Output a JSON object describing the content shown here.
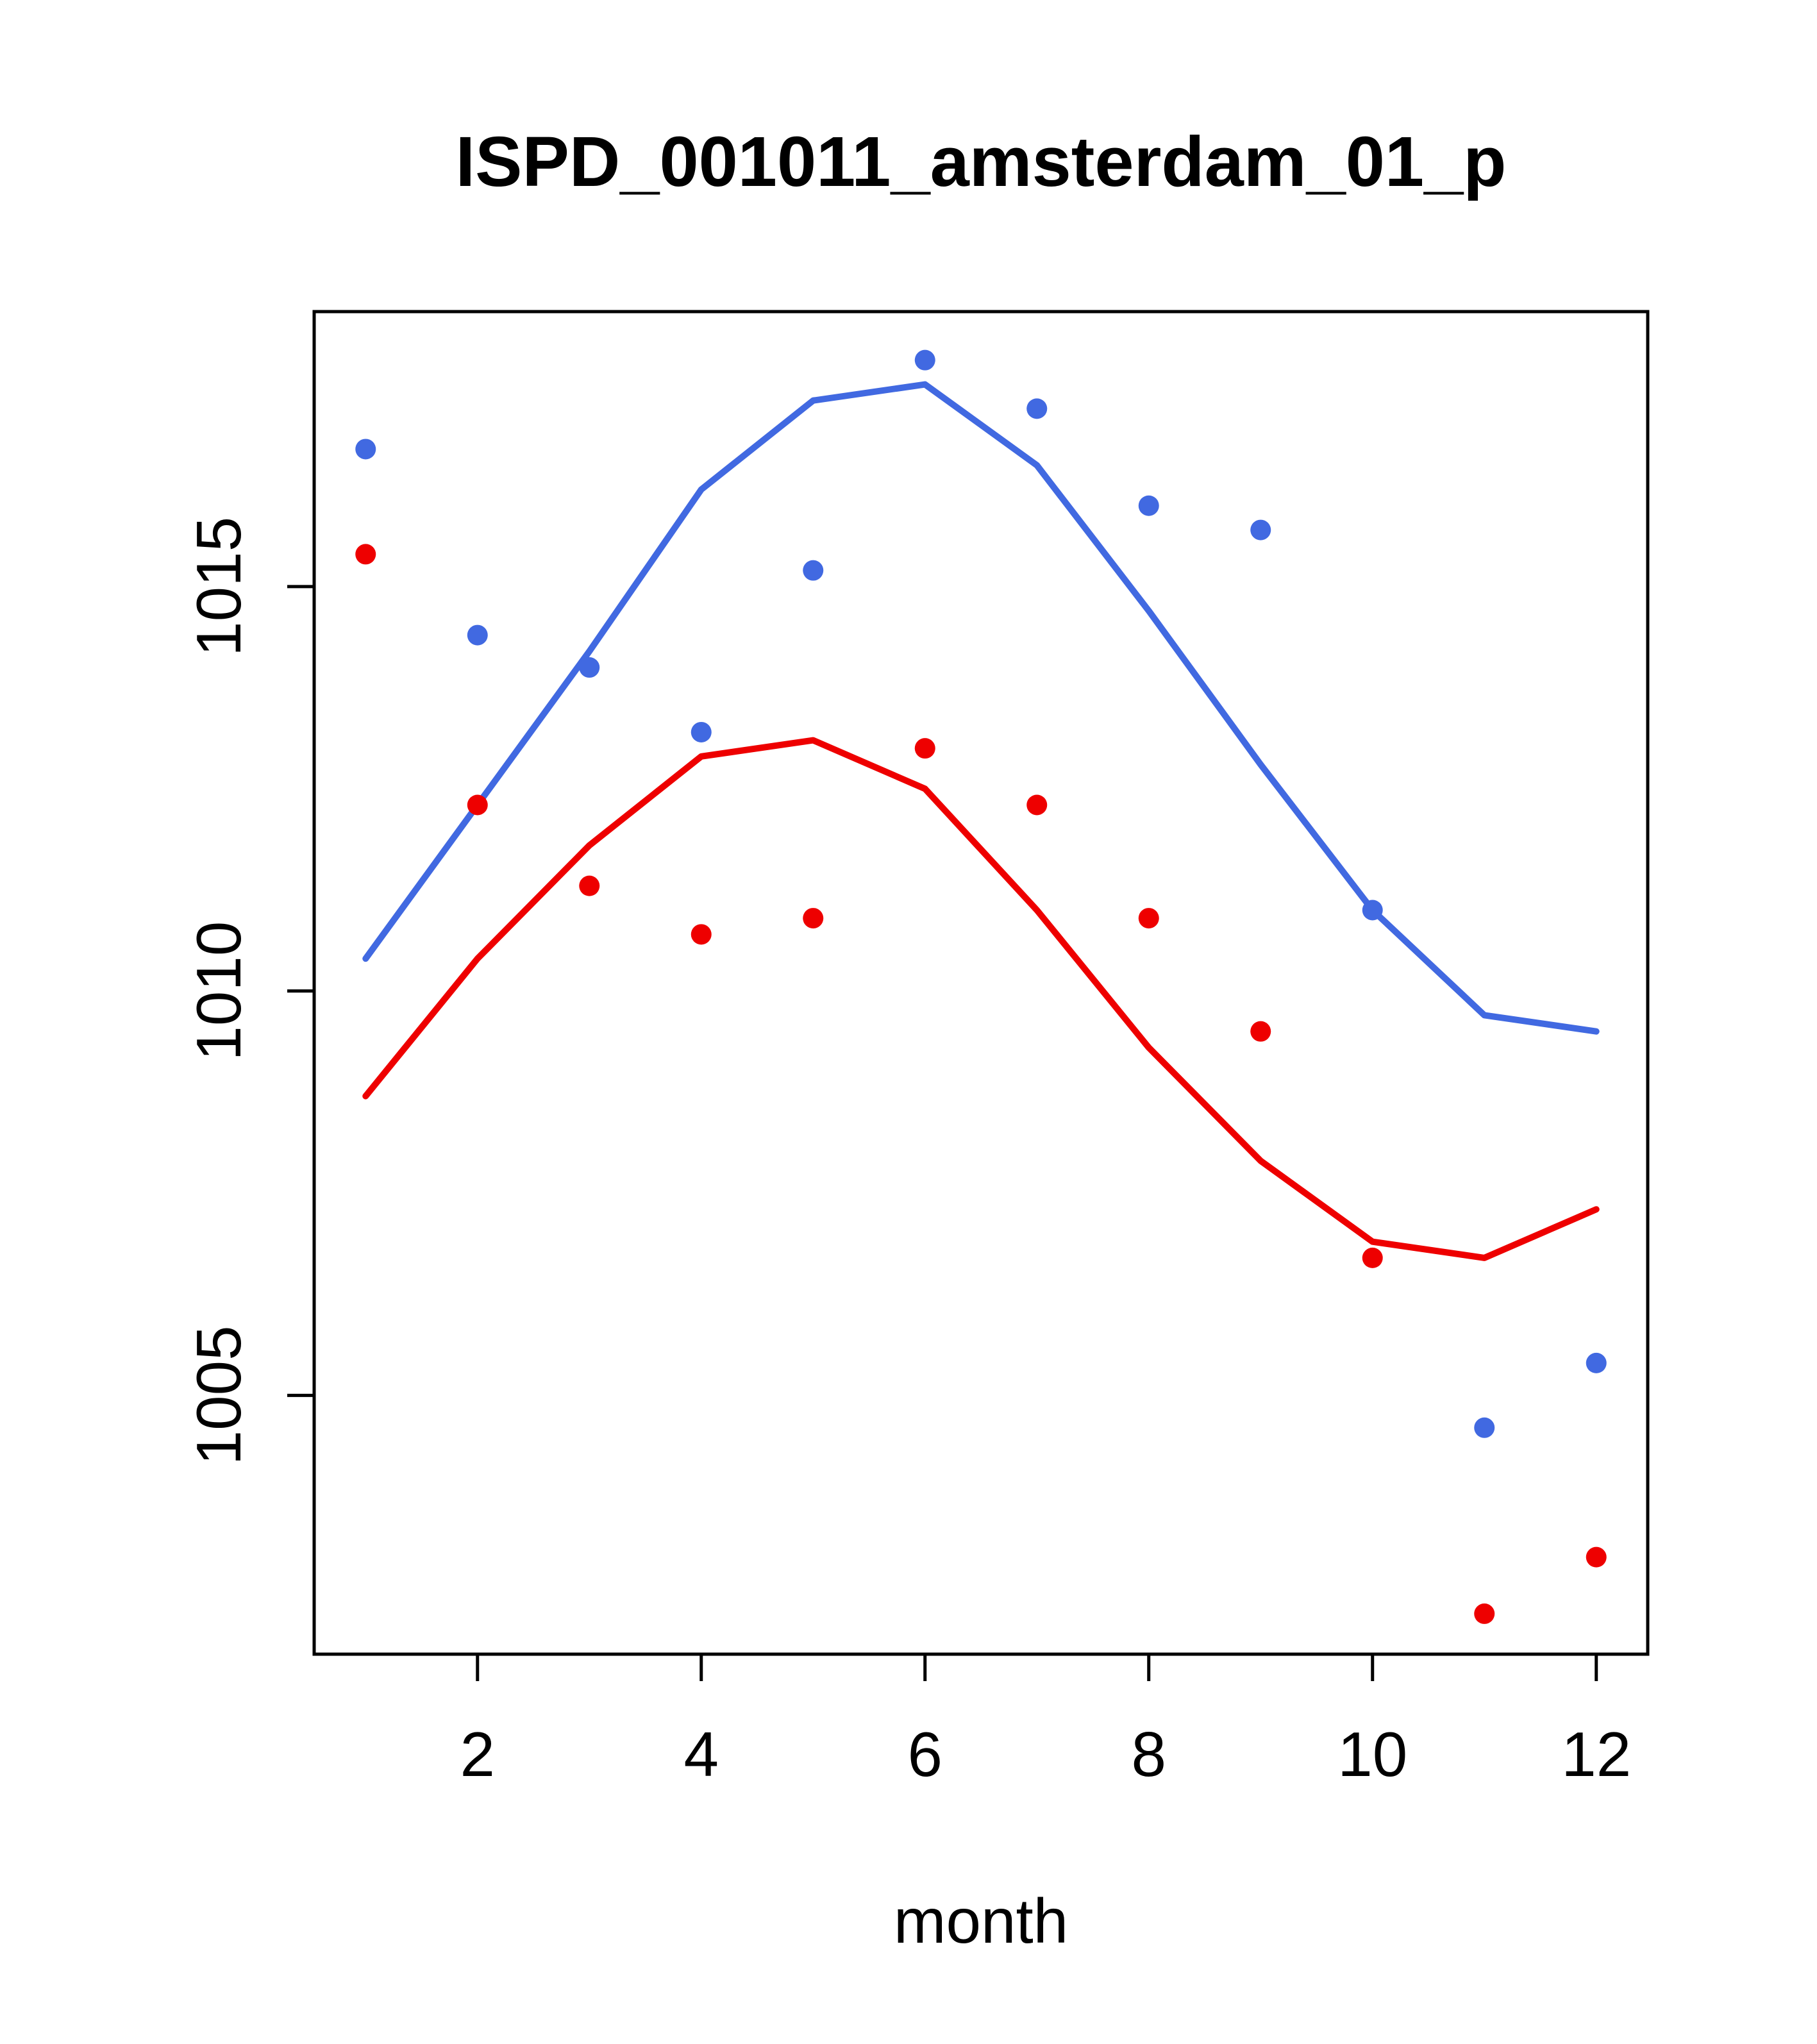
{
  "chart_data": {
    "type": "line",
    "title": "ISPD_001011_amsterdam_01_p",
    "xlabel": "month",
    "ylabel": "",
    "x": [
      1,
      2,
      3,
      4,
      5,
      6,
      7,
      8,
      9,
      10,
      11,
      12
    ],
    "xlim": [
      0.54,
      12.46
    ],
    "ylim": [
      1001.8,
      1018.4
    ],
    "x_ticks": [
      2,
      4,
      6,
      8,
      10,
      12
    ],
    "y_ticks": [
      1005,
      1010,
      1015
    ],
    "layout": {
      "grid": false,
      "legend": "none",
      "box": true
    },
    "colors": {
      "blue": "#4169E1",
      "red": "#EE0000",
      "axis": "#000000"
    },
    "series": [
      {
        "name": "blue-line",
        "kind": "line",
        "color": "#4169E1",
        "values": [
          1010.4,
          1012.3,
          1014.2,
          1016.2,
          1017.3,
          1017.5,
          1016.5,
          1014.7,
          1012.8,
          1011.0,
          1009.7,
          1009.5
        ]
      },
      {
        "name": "red-line",
        "kind": "line",
        "color": "#EE0000",
        "values": [
          1008.7,
          1010.4,
          1011.8,
          1012.9,
          1013.1,
          1012.5,
          1011.0,
          1009.3,
          1007.9,
          1006.9,
          1006.7,
          1007.3
        ]
      },
      {
        "name": "blue-points",
        "kind": "scatter",
        "color": "#4169E1",
        "values": [
          1016.7,
          1014.4,
          1014.0,
          1013.2,
          1015.2,
          1017.8,
          1017.2,
          1016.0,
          1015.7,
          1011.0,
          1004.6,
          1005.4
        ]
      },
      {
        "name": "red-points",
        "kind": "scatter",
        "color": "#EE0000",
        "values": [
          1015.4,
          1012.3,
          1011.3,
          1010.7,
          1010.9,
          1013.0,
          1012.3,
          1010.9,
          1009.5,
          1006.7,
          1002.3,
          1003.0
        ]
      }
    ]
  }
}
